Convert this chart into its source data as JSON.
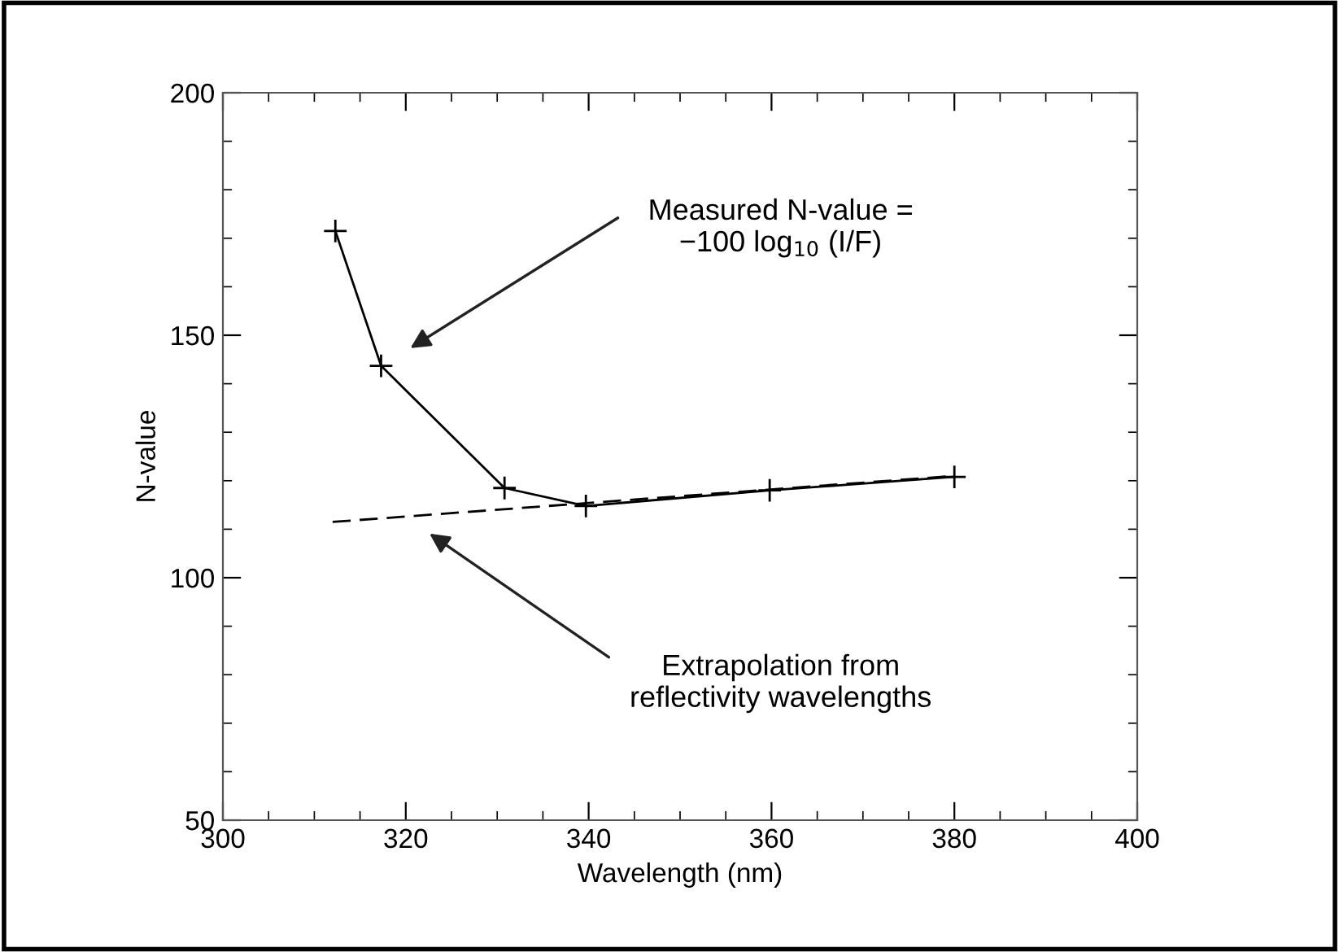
{
  "chart_data": {
    "type": "line",
    "xlabel": "Wavelength (nm)",
    "ylabel": "N-value",
    "xlim": [
      300,
      400
    ],
    "xticks": [
      300,
      320,
      340,
      360,
      380,
      400
    ],
    "ylim": [
      50,
      200
    ],
    "yticks": [
      50,
      100,
      150,
      200
    ],
    "grid": false,
    "legend": false,
    "series": [
      {
        "color": "#000000",
        "marker": "cross",
        "line_style": "solid",
        "x": [
          312.3,
          317.3,
          330.8,
          339.7,
          359.8,
          380
        ],
        "values": [
          171.5,
          143.7,
          118.5,
          114.8,
          118,
          120.8
        ]
      },
      {
        "color": "#000000",
        "marker": "none",
        "line_style": "dashed",
        "x": [
          312,
          380
        ],
        "values": [
          111.5,
          121
        ]
      }
    ],
    "annotations": [
      "Measured N-value =\n−100 log$_{10}$ (I/F)",
      "Extrapolation from\nreflectivity wavelengths"
    ]
  }
}
